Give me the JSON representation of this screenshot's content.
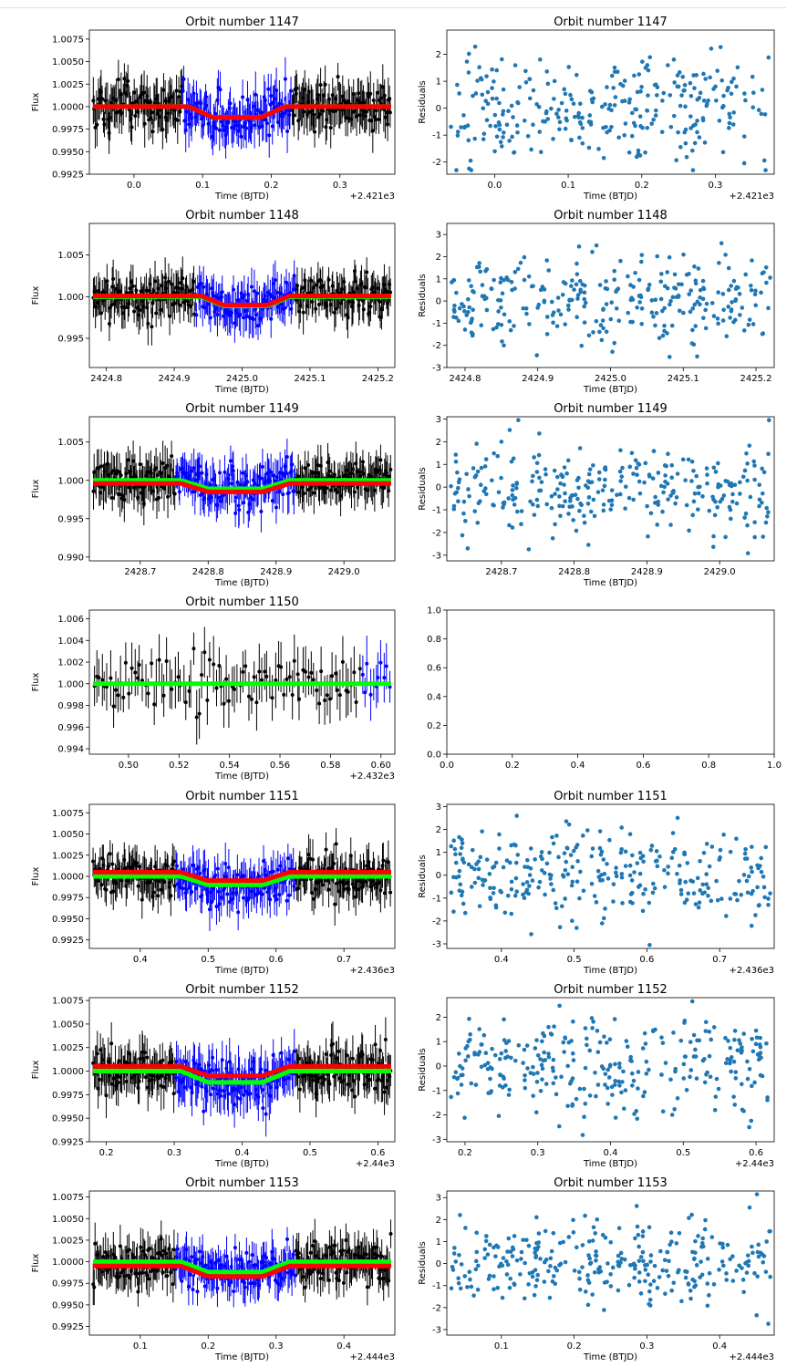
{
  "figure": {
    "colors": {
      "data_points": "#000000",
      "in_transit_points": "#0000ff",
      "model_fit": "#ff0000",
      "model_alt": "#00ff00",
      "residual_points": "#1f77b4"
    }
  },
  "chart_data": [
    {
      "type": "scatter",
      "title": "Orbit number 1147",
      "xlabel": "Time (BJTD)",
      "ylabel": "Flux",
      "x_offset": "+2.421e3",
      "xticks": [
        "0.0",
        "0.1",
        "0.2",
        "0.3"
      ],
      "xtick_values": [
        0.0,
        0.1,
        0.2,
        0.3
      ],
      "yticks": [
        "1.0075",
        "1.0050",
        "1.0025",
        "1.0000",
        "0.9975",
        "0.9950",
        "0.9925"
      ],
      "ytick_values": [
        1.0075,
        1.005,
        1.0025,
        1.0,
        0.9975,
        0.995,
        0.9925
      ],
      "xlim": [
        -0.065,
        0.38
      ],
      "ylim": [
        0.9925,
        1.0085
      ],
      "transit": [
        0.08,
        0.22
      ],
      "depth": 0.0012,
      "red_depth": 0.0012,
      "red_offset": 0.0,
      "green_offset": 0.0,
      "noise": 0.0022,
      "n": 300,
      "seed": 1
    },
    {
      "type": "scatter",
      "title": "Orbit number 1147",
      "xlabel": "Time (BTJD)",
      "ylabel": "Residuals",
      "x_offset": "+2.421e3",
      "xticks": [
        "0.0",
        "0.1",
        "0.2",
        "0.3"
      ],
      "xtick_values": [
        0.0,
        0.1,
        0.2,
        0.3
      ],
      "yticks": [
        "2",
        "1",
        "0",
        "-1",
        "-2"
      ],
      "ytick_values": [
        2,
        1,
        0,
        -1,
        -2
      ],
      "xlim": [
        -0.065,
        0.38
      ],
      "ylim": [
        -2.45,
        2.9
      ],
      "n": 300,
      "seed": 2
    },
    {
      "type": "scatter",
      "title": "Orbit number 1148",
      "xlabel": "Time (BJTD)",
      "ylabel": "Flux",
      "x_offset": "",
      "xticks": [
        "2424.8",
        "2424.9",
        "2425.0",
        "2425.1",
        "2425.2"
      ],
      "xtick_values": [
        2424.8,
        2424.9,
        2425.0,
        2425.1,
        2425.2
      ],
      "yticks": [
        "1.005",
        "1.000",
        "0.995"
      ],
      "ytick_values": [
        1.005,
        1.0,
        0.995
      ],
      "xlim": [
        2424.775,
        2425.225
      ],
      "ylim": [
        0.9915,
        1.0088
      ],
      "transit": [
        2424.94,
        2425.07
      ],
      "depth": 0.0011,
      "red_depth": 0.0011,
      "red_offset": 0.0001,
      "green_offset": 0.0,
      "noise": 0.0022,
      "n": 300,
      "seed": 3
    },
    {
      "type": "scatter",
      "title": "Orbit number 1148",
      "xlabel": "Time (BTJD)",
      "ylabel": "Residuals",
      "x_offset": "",
      "xticks": [
        "2424.8",
        "2424.9",
        "2425.0",
        "2425.1",
        "2425.2"
      ],
      "xtick_values": [
        2424.8,
        2424.9,
        2425.0,
        2425.1,
        2425.2
      ],
      "yticks": [
        "3",
        "2",
        "1",
        "0",
        "-1",
        "-2",
        "-3"
      ],
      "ytick_values": [
        3,
        2,
        1,
        0,
        -1,
        -2,
        -3
      ],
      "xlim": [
        2424.775,
        2425.225
      ],
      "ylim": [
        -3.0,
        3.5
      ],
      "n": 300,
      "seed": 4
    },
    {
      "type": "scatter",
      "title": "Orbit number 1149",
      "xlabel": "Time (BJTD)",
      "ylabel": "Flux",
      "x_offset": "",
      "xticks": [
        "2428.7",
        "2428.8",
        "2428.9",
        "2429.0"
      ],
      "xtick_values": [
        2428.7,
        2428.8,
        2428.9,
        2429.0
      ],
      "yticks": [
        "1.005",
        "1.000",
        "0.995",
        "0.990"
      ],
      "ytick_values": [
        1.005,
        1.0,
        0.995,
        0.99
      ],
      "xlim": [
        2428.625,
        2429.075
      ],
      "ylim": [
        0.9895,
        1.0083
      ],
      "transit": [
        2428.76,
        2428.92
      ],
      "depth": 0.0011,
      "red_depth": 0.0011,
      "red_offset": -0.0004,
      "green_offset": 0.0,
      "noise": 0.0025,
      "n": 300,
      "seed": 5
    },
    {
      "type": "scatter",
      "title": "Orbit number 1149",
      "xlabel": "Time (BTJD)",
      "ylabel": "Residuals",
      "x_offset": "",
      "xticks": [
        "2428.7",
        "2428.8",
        "2428.9",
        "2429.0"
      ],
      "xtick_values": [
        2428.7,
        2428.8,
        2428.9,
        2429.0
      ],
      "yticks": [
        "3",
        "2",
        "1",
        "0",
        "-1",
        "-2",
        "-3"
      ],
      "ytick_values": [
        3,
        2,
        1,
        0,
        -1,
        -2,
        -3
      ],
      "xlim": [
        2428.625,
        2429.075
      ],
      "ylim": [
        -3.25,
        3.1
      ],
      "n": 300,
      "seed": 6
    },
    {
      "type": "scatter",
      "title": "Orbit number 1150",
      "xlabel": "Time (BJTD)",
      "ylabel": "Flux",
      "x_offset": "+2.432e3",
      "xticks": [
        "0.50",
        "0.52",
        "0.54",
        "0.56",
        "0.58",
        "0.60"
      ],
      "xtick_values": [
        0.5,
        0.52,
        0.54,
        0.56,
        0.58,
        0.6
      ],
      "yticks": [
        "1.006",
        "1.004",
        "1.002",
        "1.000",
        "0.998",
        "0.996",
        "0.994"
      ],
      "ytick_values": [
        1.006,
        1.004,
        1.002,
        1.0,
        0.998,
        0.996,
        0.994
      ],
      "xlim": [
        0.4845,
        0.6055
      ],
      "ylim": [
        0.9935,
        1.0068
      ],
      "transit": null,
      "depth": 0,
      "red_depth": 0,
      "red_offset": 0,
      "green_offset": 0.0,
      "noise": 0.0022,
      "n": 110,
      "seed": 7,
      "no_red": true
    },
    {
      "type": "scatter",
      "title": "",
      "xlabel": "",
      "ylabel": "",
      "x_offset": "",
      "xticks": [
        "0.0",
        "0.2",
        "0.4",
        "0.6",
        "0.8",
        "1.0"
      ],
      "xtick_values": [
        0,
        0.2,
        0.4,
        0.6,
        0.8,
        1.0
      ],
      "yticks": [
        "1.0",
        "0.8",
        "0.6",
        "0.4",
        "0.2",
        "0.0"
      ],
      "ytick_values": [
        1.0,
        0.8,
        0.6,
        0.4,
        0.2,
        0.0
      ],
      "xlim": [
        0,
        1
      ],
      "ylim": [
        0,
        1
      ],
      "n": 0,
      "seed": 8,
      "empty": true
    },
    {
      "type": "scatter",
      "title": "Orbit number 1151",
      "xlabel": "Time (BJTD)",
      "ylabel": "Flux",
      "x_offset": "+2.436e3",
      "xticks": [
        "0.4",
        "0.5",
        "0.6",
        "0.7"
      ],
      "xtick_values": [
        0.4,
        0.5,
        0.6,
        0.7
      ],
      "yticks": [
        "1.0075",
        "1.0050",
        "1.0025",
        "1.0000",
        "0.9975",
        "0.9950",
        "0.9925"
      ],
      "ytick_values": [
        1.0075,
        1.005,
        1.0025,
        1.0,
        0.9975,
        0.995,
        0.9925
      ],
      "xlim": [
        0.325,
        0.775
      ],
      "ylim": [
        0.9915,
        1.0085
      ],
      "transit": [
        0.46,
        0.62
      ],
      "depth": 0.001,
      "red_depth": 0.001,
      "red_offset": 0.0005,
      "green_offset": 0.0,
      "noise": 0.0022,
      "n": 300,
      "seed": 9
    },
    {
      "type": "scatter",
      "title": "Orbit number 1151",
      "xlabel": "Time (BTJD)",
      "ylabel": "Residuals",
      "x_offset": "+2.436e3",
      "xticks": [
        "0.4",
        "0.5",
        "0.6",
        "0.7"
      ],
      "xtick_values": [
        0.4,
        0.5,
        0.6,
        0.7
      ],
      "yticks": [
        "3",
        "2",
        "1",
        "0",
        "-1",
        "-2",
        "-3"
      ],
      "ytick_values": [
        3,
        2,
        1,
        0,
        -1,
        -2,
        -3
      ],
      "xlim": [
        0.325,
        0.775
      ],
      "ylim": [
        -3.2,
        3.1
      ],
      "n": 300,
      "seed": 10
    },
    {
      "type": "scatter",
      "title": "Orbit number 1152",
      "xlabel": "Time (BJTD)",
      "ylabel": "Flux",
      "x_offset": "+2.44e3",
      "xticks": [
        "0.2",
        "0.3",
        "0.4",
        "0.5",
        "0.6"
      ],
      "xtick_values": [
        0.2,
        0.3,
        0.4,
        0.5,
        0.6
      ],
      "yticks": [
        "1.0075",
        "1.0050",
        "1.0025",
        "1.0000",
        "0.9975",
        "0.9950",
        "0.9925"
      ],
      "ytick_values": [
        1.0075,
        1.005,
        1.0025,
        1.0,
        0.9975,
        0.995,
        0.9925
      ],
      "xlim": [
        0.175,
        0.625
      ],
      "ylim": [
        0.9925,
        1.0078
      ],
      "transit": [
        0.31,
        0.47
      ],
      "depth": 0.0012,
      "red_depth": 0.001,
      "red_offset": 0.0005,
      "green_offset": 0.0,
      "noise": 0.0022,
      "n": 300,
      "seed": 11
    },
    {
      "type": "scatter",
      "title": "Orbit number 1152",
      "xlabel": "Time (BTJD)",
      "ylabel": "Residuals",
      "x_offset": "+2.44e3",
      "xticks": [
        "0.2",
        "0.3",
        "0.4",
        "0.5",
        "0.6"
      ],
      "xtick_values": [
        0.2,
        0.3,
        0.4,
        0.5,
        0.6
      ],
      "yticks": [
        "2",
        "1",
        "0",
        "-1",
        "-2",
        "-3"
      ],
      "ytick_values": [
        2,
        1,
        0,
        -1,
        -2,
        -3
      ],
      "xlim": [
        0.175,
        0.625
      ],
      "ylim": [
        -3.1,
        2.8
      ],
      "n": 300,
      "seed": 12
    },
    {
      "type": "scatter",
      "title": "Orbit number 1153",
      "xlabel": "Time (BJTD)",
      "ylabel": "Flux",
      "x_offset": "+2.444e3",
      "xticks": [
        "0.1",
        "0.2",
        "0.3",
        "0.4"
      ],
      "xtick_values": [
        0.1,
        0.2,
        0.3,
        0.4
      ],
      "yticks": [
        "1.0075",
        "1.0050",
        "1.0025",
        "1.0000",
        "0.9975",
        "0.9950",
        "0.9925"
      ],
      "ytick_values": [
        1.0075,
        1.005,
        1.0025,
        1.0,
        0.9975,
        0.995,
        0.9925
      ],
      "xlim": [
        0.025,
        0.475
      ],
      "ylim": [
        0.9915,
        1.0082
      ],
      "transit": [
        0.16,
        0.32
      ],
      "depth": 0.0012,
      "red_depth": 0.0012,
      "red_offset": -0.0005,
      "green_offset": 0.0,
      "noise": 0.0022,
      "n": 300,
      "seed": 13
    },
    {
      "type": "scatter",
      "title": "Orbit number 1153",
      "xlabel": "Time (BTJD)",
      "ylabel": "Residuals",
      "x_offset": "+2.444e3",
      "xticks": [
        "0.1",
        "0.2",
        "0.3",
        "0.4"
      ],
      "xtick_values": [
        0.1,
        0.2,
        0.3,
        0.4
      ],
      "yticks": [
        "3",
        "2",
        "1",
        "0",
        "-1",
        "-2",
        "-3"
      ],
      "ytick_values": [
        3,
        2,
        1,
        0,
        -1,
        -2,
        -3
      ],
      "xlim": [
        0.025,
        0.475
      ],
      "ylim": [
        -3.25,
        3.3
      ],
      "n": 300,
      "seed": 14
    }
  ]
}
